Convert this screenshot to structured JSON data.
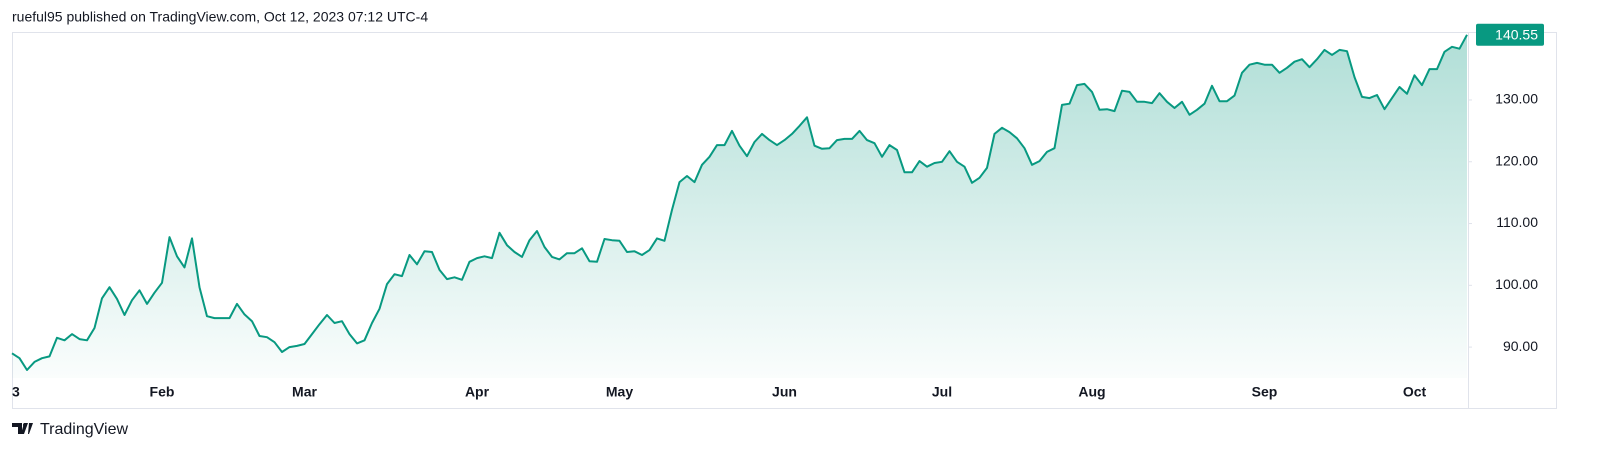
{
  "header": "rueful95 published on TradingView.com, Oct 12, 2023 07:12 UTC-4",
  "brand": "TradingView",
  "chart_data": {
    "type": "area",
    "color": "#089981",
    "x": [
      0,
      1,
      2,
      3,
      4,
      5,
      6,
      7,
      8,
      9,
      10,
      11,
      12,
      13,
      14,
      15,
      16,
      17,
      18,
      19,
      20,
      21,
      22,
      23,
      24,
      25,
      26,
      27,
      28,
      29,
      30,
      31,
      32,
      33,
      34,
      35,
      36,
      37,
      38,
      39,
      40,
      41,
      42,
      43,
      44,
      45,
      46,
      47,
      48,
      49,
      50,
      51,
      52,
      53,
      54,
      55,
      56,
      57,
      58,
      59,
      60,
      61,
      62,
      63,
      64,
      65,
      66,
      67,
      68,
      69,
      70,
      71,
      72,
      73,
      74,
      75,
      76,
      77,
      78,
      79,
      80,
      81,
      82,
      83,
      84,
      85,
      86,
      87,
      88,
      89,
      90,
      91,
      92,
      93,
      94,
      95,
      96,
      97,
      98,
      99,
      100,
      101,
      102,
      103,
      104,
      105,
      106,
      107,
      108,
      109,
      110,
      111,
      112,
      113,
      114,
      115,
      116,
      117,
      118,
      119,
      120,
      121,
      122,
      123,
      124,
      125,
      126,
      127,
      128,
      129,
      130,
      131,
      132,
      133,
      134,
      135,
      136,
      137,
      138,
      139,
      140,
      141,
      142,
      143,
      144,
      145,
      146,
      147,
      148,
      149,
      150,
      151,
      152,
      153,
      154,
      155,
      156,
      157,
      158,
      159,
      160,
      161,
      162,
      163,
      164,
      165,
      166,
      167,
      168,
      169,
      170,
      171,
      172,
      173,
      174,
      175,
      176,
      177,
      178,
      179,
      180,
      181,
      182,
      183,
      184,
      185,
      186,
      187,
      188,
      189,
      190,
      191,
      192,
      193,
      194
    ],
    "values": [
      89.0,
      88.2,
      86.3,
      87.6,
      88.2,
      88.5,
      91.5,
      91.1,
      92.1,
      91.3,
      91.1,
      93.1,
      97.9,
      99.7,
      97.8,
      95.2,
      97.6,
      99.2,
      97.0,
      98.8,
      100.4,
      107.8,
      104.7,
      102.9,
      107.6,
      99.7,
      95.0,
      94.7,
      94.7,
      94.7,
      97.0,
      95.3,
      94.2,
      91.8,
      91.6,
      90.8,
      89.2,
      90.0,
      90.2,
      90.5,
      92.1,
      93.7,
      95.2,
      93.9,
      94.2,
      92.1,
      90.6,
      91.1,
      93.9,
      96.2,
      100.2,
      101.8,
      101.5,
      104.9,
      103.4,
      105.5,
      105.4,
      102.5,
      101.0,
      101.3,
      100.9,
      103.8,
      104.4,
      104.7,
      104.4,
      108.5,
      106.5,
      105.4,
      104.6,
      107.3,
      108.8,
      106.2,
      104.6,
      104.2,
      105.2,
      105.2,
      106.0,
      103.9,
      103.8,
      107.5,
      107.3,
      107.2,
      105.4,
      105.5,
      104.9,
      105.7,
      107.6,
      107.2,
      112.2,
      116.7,
      117.7,
      116.7,
      119.5,
      120.8,
      122.7,
      122.7,
      125.0,
      122.6,
      120.9,
      123.2,
      124.5,
      123.5,
      122.7,
      123.5,
      124.5,
      125.8,
      127.2,
      122.6,
      122.1,
      122.2,
      123.5,
      123.7,
      123.7,
      125.0,
      123.5,
      123.0,
      120.8,
      122.7,
      121.9,
      118.3,
      118.3,
      120.1,
      119.2,
      119.8,
      120.0,
      121.7,
      120.0,
      119.2,
      116.6,
      117.4,
      119.0,
      124.5,
      125.5,
      124.8,
      123.8,
      122.2,
      119.5,
      120.1,
      121.6,
      122.2,
      129.2,
      129.4,
      132.4,
      132.6,
      131.3,
      128.4,
      128.5,
      128.2,
      131.5,
      131.3,
      129.7,
      129.7,
      129.5,
      131.1,
      129.7,
      128.7,
      129.7,
      127.6,
      128.4,
      129.4,
      132.3,
      129.8,
      129.8,
      130.7,
      134.4,
      135.7,
      136.0,
      135.7,
      135.7,
      134.4,
      135.2,
      136.2,
      136.6,
      135.3,
      136.6,
      138.1,
      137.3,
      138.1,
      137.9,
      133.7,
      130.5,
      130.3,
      130.8,
      128.5,
      130.3,
      132.1,
      131.0,
      134.0,
      132.4,
      135.0,
      135.0,
      137.8,
      138.6,
      138.3,
      140.55
    ],
    "last_price": 140.55,
    "xlim": [
      0,
      194
    ],
    "xticks": [
      {
        "value": 0,
        "label": "3"
      },
      {
        "value": 20,
        "label": "Feb"
      },
      {
        "value": 39,
        "label": "Mar"
      },
      {
        "value": 62,
        "label": "Apr"
      },
      {
        "value": 81,
        "label": "May"
      },
      {
        "value": 103,
        "label": "Jun"
      },
      {
        "value": 124,
        "label": "Jul"
      },
      {
        "value": 144,
        "label": "Aug"
      },
      {
        "value": 167,
        "label": "Sep"
      },
      {
        "value": 187,
        "label": "Oct"
      }
    ],
    "ylim": [
      85,
      141
    ],
    "yticks": [
      {
        "value": 90,
        "label": "90.00"
      },
      {
        "value": 100,
        "label": "100.00"
      },
      {
        "value": 110,
        "label": "110.00"
      },
      {
        "value": 120,
        "label": "120.00"
      },
      {
        "value": 130,
        "label": "130.00"
      }
    ],
    "grid": false
  }
}
